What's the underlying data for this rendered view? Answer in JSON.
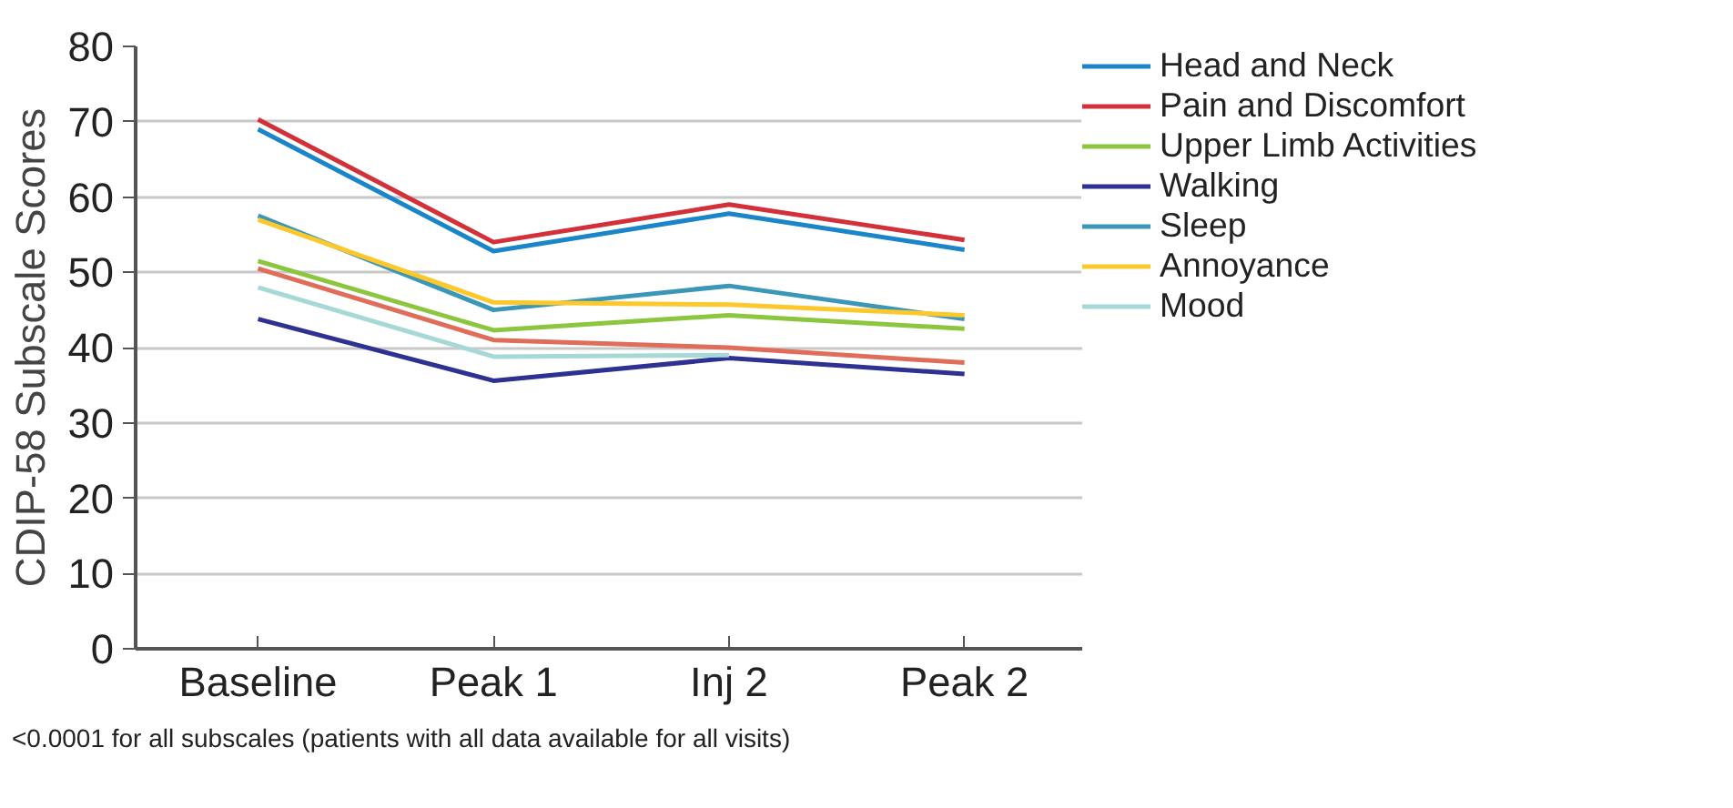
{
  "chart_data": {
    "type": "line",
    "ylabel": "CDIP-58 Subscale Scores",
    "categories": [
      "Baseline",
      "Peak 1",
      "Inj 2",
      "Peak 2"
    ],
    "series": [
      {
        "name": "Head and Neck",
        "color": "#1a85c8",
        "values": [
          69,
          52.8,
          57.8,
          53
        ]
      },
      {
        "name": "Pain and Discomfort",
        "color": "#d3313a",
        "values": [
          70.3,
          54,
          59,
          54.3
        ]
      },
      {
        "name": "Upper Limb Activities",
        "color": "#8cc63f",
        "values": [
          51.5,
          42.3,
          44.3,
          42.5
        ]
      },
      {
        "name": "Walking",
        "color": "#2e3192",
        "values": [
          43.8,
          35.6,
          38.6,
          36.5
        ]
      },
      {
        "name": "Sleep",
        "color": "#3a97b8",
        "values": [
          57.5,
          45,
          48.2,
          43.8
        ]
      },
      {
        "name": "Annoyance",
        "color": "#fcc82c",
        "values": [
          57,
          46,
          45.7,
          44.3
        ]
      },
      {
        "name": "Mood",
        "color": "#a6d9d6",
        "values": [
          48,
          38.8,
          39,
          null
        ]
      },
      {
        "color": "#e06c5a",
        "values": [
          50.5,
          41,
          40,
          38
        ]
      }
    ],
    "ylim": [
      0,
      80
    ],
    "yticks": [
      0,
      10,
      20,
      30,
      40,
      50,
      60,
      70,
      80
    ],
    "grid": "y",
    "legend": "top right",
    "marker": "none",
    "line_style": "solid",
    "annotations": [
      "<0.0001 for all subscales (patients with all data available for all visits)"
    ]
  }
}
